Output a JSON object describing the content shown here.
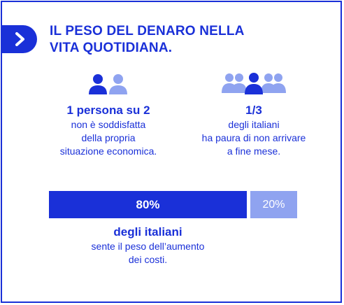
{
  "title": "IL PESO DEL DENARO NELLA VITA QUOTIDIANA.",
  "colors": {
    "primary": "#1a30d8",
    "light": "#8fa3f0"
  },
  "left_stat": {
    "headline": "1 persona su 2",
    "lines": [
      "non è soddisfatta",
      "della propria",
      "situazione economica."
    ],
    "icon": "two-people-icon"
  },
  "right_stat": {
    "headline": "1/3",
    "lines": [
      "degli italiani",
      "ha paura di non arrivare",
      "a fine mese."
    ],
    "icon": "group-people-icon"
  },
  "bar": {
    "main_label": "80%",
    "rest_label": "20%",
    "main_value": 0.8,
    "rest_value": 0.2
  },
  "bottom": {
    "headline": "degli italiani",
    "lines": [
      "sente il peso dell’aumento",
      "dei costi."
    ]
  }
}
